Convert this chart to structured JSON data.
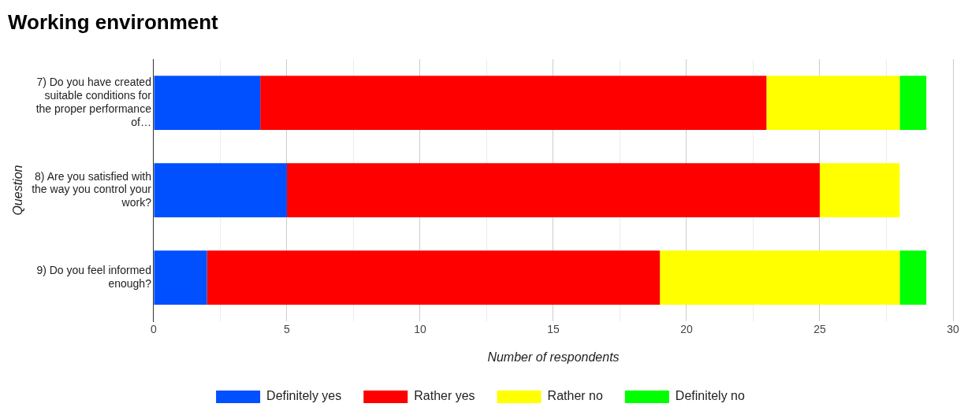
{
  "chart_data": {
    "type": "bar",
    "orientation": "horizontal",
    "stacked": true,
    "title": "Working environment",
    "xlabel": "Number of respondents",
    "ylabel": "Question",
    "categories": [
      "7) Do you have created suitable conditions for the proper performance of…",
      "8) Are you satisfied with the way you control your work?",
      "9) Do you feel informed enough?"
    ],
    "series": [
      {
        "name": "Definitely yes",
        "color": "#0050ff",
        "values": [
          4,
          5,
          2
        ]
      },
      {
        "name": "Rather yes",
        "color": "#ff0000",
        "values": [
          19,
          20,
          17
        ]
      },
      {
        "name": "Rather no",
        "color": "#ffff00",
        "values": [
          5,
          3,
          9
        ]
      },
      {
        "name": "Definitely no",
        "color": "#00ff00",
        "values": [
          1,
          0,
          1
        ]
      }
    ],
    "xlim": [
      0,
      30
    ],
    "xticks": [
      0,
      {
        "value": 2.5,
        "label": null
      },
      5,
      {
        "value": 7.5,
        "label": null
      },
      10,
      {
        "value": 12.5,
        "label": null
      },
      15,
      {
        "value": 17.5,
        "label": null
      },
      20,
      {
        "value": 22.5,
        "label": null
      },
      25,
      {
        "value": 27.5,
        "label": null
      },
      30
    ],
    "grid": "x",
    "legend": "bottom"
  }
}
